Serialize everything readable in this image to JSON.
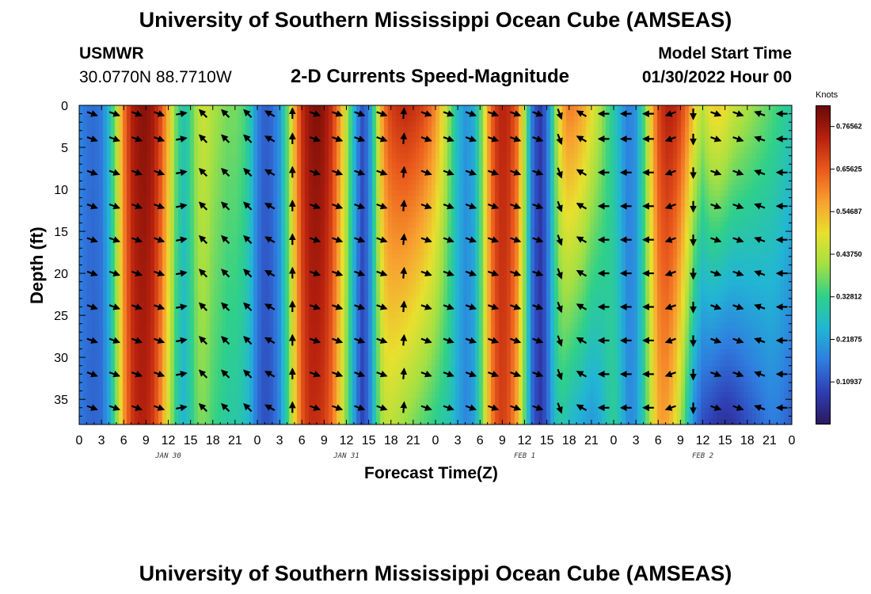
{
  "header": {
    "title": "University of Southern Mississippi Ocean Cube (AMSEAS)",
    "station": "USMWR",
    "coords": "30.0770N  88.7710W",
    "plot_title": "2-D Currents Speed-Magnitude",
    "model_start_label": "Model Start Time",
    "model_start_value": "01/30/2022 Hour 00"
  },
  "footer": {
    "title": "University of Southern Mississippi Ocean Cube (AMSEAS)"
  },
  "colors": {
    "colormap": [
      "#2b1a5e",
      "#2f3fb5",
      "#2f7ee0",
      "#22b6d4",
      "#2fd08a",
      "#a3e043",
      "#e8e02e",
      "#f8a030",
      "#ea5a1c",
      "#b8210e",
      "#6a0a07"
    ]
  },
  "chart_data": {
    "type": "heatmap",
    "title": "2-D Currents Speed-Magnitude",
    "xlabel": "Forecast Time(Z)",
    "ylabel": "Depth (ft)",
    "units": "Knots",
    "x_range": [
      0,
      96
    ],
    "y_range": [
      0,
      38
    ],
    "x_tick_values": [
      0,
      3,
      6,
      9,
      12,
      15,
      18,
      21,
      24,
      27,
      30,
      33,
      36,
      39,
      42,
      45,
      48,
      51,
      54,
      57,
      60,
      63,
      66,
      69,
      72,
      75,
      78,
      81,
      84,
      87,
      90,
      93,
      96
    ],
    "x_tick_labels": [
      "0",
      "3",
      "6",
      "9",
      "12",
      "15",
      "18",
      "21",
      "0",
      "3",
      "6",
      "9",
      "12",
      "15",
      "18",
      "21",
      "0",
      "3",
      "6",
      "9",
      "12",
      "15",
      "18",
      "21",
      "0",
      "3",
      "6",
      "9",
      "12",
      "15",
      "18",
      "21",
      "0"
    ],
    "date_labels": [
      {
        "x": 12,
        "text": "JAN 30"
      },
      {
        "x": 36,
        "text": "JAN 31"
      },
      {
        "x": 60,
        "text": "FEB 1"
      },
      {
        "x": 84,
        "text": "FEB 2"
      }
    ],
    "y_ticks": [
      0,
      5,
      10,
      15,
      20,
      25,
      30,
      35
    ],
    "colorbar": {
      "range": [
        0.0,
        0.82
      ],
      "ticks": [
        0.10937,
        0.21875,
        0.32812,
        0.4375,
        0.54687,
        0.65625,
        0.76562
      ],
      "tick_labels": [
        "0.10937",
        "0.21875",
        "0.32812",
        "0.43750",
        "0.54687",
        "0.65625",
        "0.76562"
      ]
    },
    "speed_profile": {
      "hours": [
        0,
        1,
        2,
        3,
        4,
        5,
        6,
        7,
        8,
        9,
        10,
        11,
        12,
        13,
        14,
        15,
        16,
        17,
        18,
        19,
        20,
        21,
        22,
        23,
        24,
        25,
        26,
        27,
        28,
        29,
        30,
        31,
        32,
        33,
        34,
        35,
        36,
        37,
        38,
        39,
        40,
        41,
        42,
        43,
        44,
        45,
        46,
        47,
        48,
        49,
        50,
        51,
        52,
        53,
        54,
        55,
        56,
        57,
        58,
        59,
        60,
        61,
        62,
        63,
        64,
        65,
        66,
        67,
        68,
        69,
        70,
        71,
        72,
        73,
        74,
        75,
        76,
        77,
        78,
        79,
        80,
        81,
        82,
        83,
        84,
        85,
        86,
        87,
        88,
        89,
        90,
        91,
        92,
        93,
        94,
        95,
        96
      ],
      "surface": [
        0.18,
        0.15,
        0.14,
        0.16,
        0.26,
        0.42,
        0.62,
        0.74,
        0.78,
        0.79,
        0.76,
        0.68,
        0.55,
        0.38,
        0.28,
        0.34,
        0.44,
        0.46,
        0.42,
        0.4,
        0.38,
        0.38,
        0.36,
        0.3,
        0.17,
        0.12,
        0.14,
        0.2,
        0.36,
        0.56,
        0.72,
        0.78,
        0.8,
        0.78,
        0.72,
        0.6,
        0.44,
        0.26,
        0.1,
        0.16,
        0.4,
        0.62,
        0.7,
        0.72,
        0.73,
        0.72,
        0.7,
        0.66,
        0.6,
        0.5,
        0.38,
        0.26,
        0.2,
        0.22,
        0.34,
        0.56,
        0.7,
        0.74,
        0.72,
        0.64,
        0.42,
        0.16,
        0.06,
        0.14,
        0.36,
        0.56,
        0.62,
        0.6,
        0.56,
        0.5,
        0.44,
        0.36,
        0.3,
        0.22,
        0.16,
        0.2,
        0.34,
        0.52,
        0.68,
        0.74,
        0.74,
        0.7,
        0.62,
        0.5,
        0.44,
        0.5,
        0.52,
        0.5,
        0.46,
        0.44,
        0.42,
        0.4,
        0.38,
        0.36,
        0.34,
        0.32,
        0.3
      ],
      "bottom": [
        0.16,
        0.14,
        0.13,
        0.14,
        0.22,
        0.38,
        0.58,
        0.7,
        0.74,
        0.74,
        0.7,
        0.6,
        0.46,
        0.32,
        0.24,
        0.3,
        0.38,
        0.38,
        0.34,
        0.32,
        0.3,
        0.3,
        0.28,
        0.24,
        0.14,
        0.1,
        0.12,
        0.18,
        0.32,
        0.5,
        0.66,
        0.72,
        0.72,
        0.7,
        0.64,
        0.52,
        0.38,
        0.22,
        0.08,
        0.14,
        0.32,
        0.44,
        0.44,
        0.42,
        0.4,
        0.38,
        0.36,
        0.34,
        0.32,
        0.3,
        0.28,
        0.22,
        0.18,
        0.2,
        0.32,
        0.52,
        0.66,
        0.7,
        0.66,
        0.56,
        0.36,
        0.14,
        0.06,
        0.12,
        0.26,
        0.3,
        0.26,
        0.24,
        0.22,
        0.2,
        0.22,
        0.28,
        0.32,
        0.26,
        0.18,
        0.2,
        0.3,
        0.44,
        0.56,
        0.58,
        0.52,
        0.42,
        0.28,
        0.16,
        0.1,
        0.08,
        0.06,
        0.05,
        0.06,
        0.08,
        0.1,
        0.12,
        0.14,
        0.16,
        0.16,
        0.14,
        0.12
      ]
    },
    "vector_grid": {
      "hours": [
        3,
        6,
        9,
        12,
        15,
        18,
        21,
        24,
        27,
        30,
        33,
        36,
        39,
        42,
        45,
        48,
        51,
        54,
        57,
        60,
        63,
        66,
        69,
        72,
        75,
        78,
        81,
        84,
        87,
        90,
        93,
        96
      ],
      "depths": [
        1,
        4,
        8,
        12,
        16,
        20,
        24,
        28,
        32,
        36
      ],
      "direction_deg": [
        110,
        110,
        110,
        110,
        80,
        315,
        315,
        315,
        300,
        0,
        110,
        110,
        110,
        110,
        5,
        110,
        110,
        110,
        110,
        110,
        110,
        160,
        300,
        270,
        270,
        270,
        250,
        180,
        110,
        110,
        290,
        270
      ]
    }
  }
}
